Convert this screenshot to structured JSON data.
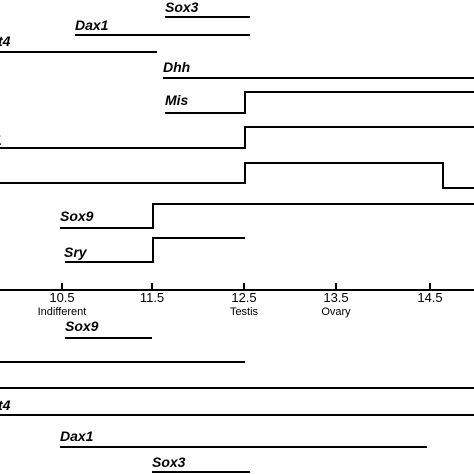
{
  "upper_labels": [
    "Sox3",
    "Dax1",
    "t4",
    "Dhh",
    "Mis",
    "1",
    "Sox9",
    "Sry"
  ],
  "axis": {
    "ticks": [
      "10.5",
      "11.5",
      "12.5",
      "13.5",
      "14.5"
    ],
    "stages": [
      "Indifferent",
      "Testis",
      "Ovary"
    ]
  },
  "lower_labels": [
    "Sox9",
    "t4",
    "Dax1",
    "Sox3"
  ]
}
